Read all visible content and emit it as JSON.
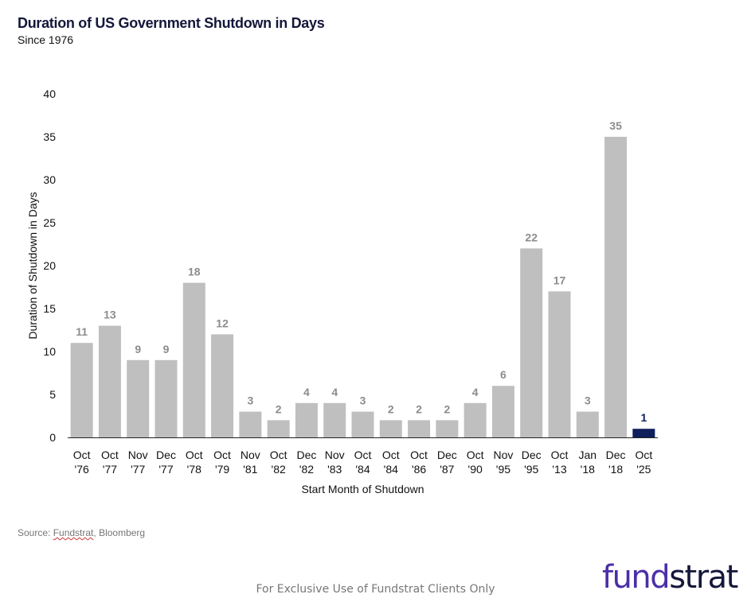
{
  "chart_data": {
    "type": "bar",
    "title": "Duration of US Government Shutdown in Days",
    "subtitle": "Since 1976",
    "xlabel": "Start Month of Shutdown",
    "ylabel": "Duration of Shutdown in Days",
    "ylim": [
      0,
      40
    ],
    "yticks": [
      0,
      5,
      10,
      15,
      20,
      25,
      30,
      35,
      40
    ],
    "grid": false,
    "categories": [
      [
        "Oct",
        "'76"
      ],
      [
        "Oct",
        "'77"
      ],
      [
        "Nov",
        "'77"
      ],
      [
        "Dec",
        "'77"
      ],
      [
        "Oct",
        "'78"
      ],
      [
        "Oct",
        "'79"
      ],
      [
        "Nov",
        "'81"
      ],
      [
        "Oct",
        "'82"
      ],
      [
        "Dec",
        "'82"
      ],
      [
        "Nov",
        "'83"
      ],
      [
        "Oct",
        "'84"
      ],
      [
        "Oct",
        "'84"
      ],
      [
        "Oct",
        "'86"
      ],
      [
        "Dec",
        "'87"
      ],
      [
        "Oct",
        "'90"
      ],
      [
        "Nov",
        "'95"
      ],
      [
        "Dec",
        "'95"
      ],
      [
        "Oct",
        "'13"
      ],
      [
        "Jan",
        "'18"
      ],
      [
        "Dec",
        "'18"
      ],
      [
        "Oct",
        "'25"
      ]
    ],
    "values": [
      11,
      13,
      9,
      9,
      18,
      12,
      3,
      2,
      4,
      4,
      3,
      2,
      2,
      2,
      4,
      6,
      22,
      17,
      3,
      35,
      1
    ],
    "colors": {
      "default": "#bfbfbf",
      "highlight": "#0f1f5c",
      "label_default": "#8c8c8c",
      "label_highlight": "#0f1f5c"
    },
    "highlight_index": 20
  },
  "source": {
    "prefix": "Source: ",
    "fundstrat": "Fundstrat",
    "rest": ", Bloomberg"
  },
  "footer": "For Exclusive Use of Fundstrat Clients Only",
  "logo": {
    "part1": "fund",
    "part2": "strat"
  }
}
